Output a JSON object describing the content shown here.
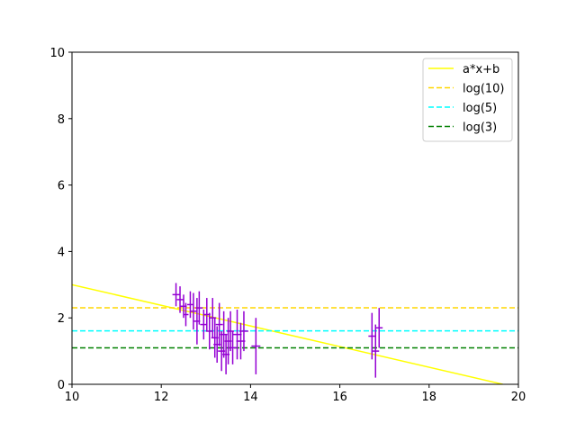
{
  "chart_data": {
    "type": "scatter",
    "xlim": [
      10,
      20
    ],
    "ylim": [
      0,
      10
    ],
    "xticks": [
      10,
      12,
      14,
      16,
      18,
      20
    ],
    "yticks": [
      0,
      2,
      4,
      6,
      8,
      10
    ],
    "grid": false,
    "legend_position": "top-right",
    "series": [
      {
        "name": "a*x+b",
        "kind": "line",
        "style": "solid",
        "color": "#ffff00",
        "x": [
          10,
          19.65
        ],
        "y": [
          3.0,
          0.0
        ]
      },
      {
        "name": "log(10)",
        "kind": "hline",
        "style": "dashed",
        "color": "#ffd700",
        "y": 2.303
      },
      {
        "name": "log(5)",
        "kind": "hline",
        "style": "dashed",
        "color": "#00ffff",
        "y": 1.609
      },
      {
        "name": "log(3)",
        "kind": "hline",
        "style": "dashed",
        "color": "#008000",
        "y": 1.099
      }
    ],
    "errorbar_series": {
      "color": "#9400d3",
      "points": [
        {
          "x": 12.33,
          "y": 2.7,
          "xerr": 0.08,
          "yerr": 0.35
        },
        {
          "x": 12.42,
          "y": 2.55,
          "xerr": 0.07,
          "yerr": 0.4
        },
        {
          "x": 12.5,
          "y": 2.35,
          "xerr": 0.07,
          "yerr": 0.35
        },
        {
          "x": 12.55,
          "y": 2.1,
          "xerr": 0.06,
          "yerr": 0.35
        },
        {
          "x": 12.65,
          "y": 2.4,
          "xerr": 0.07,
          "yerr": 0.4
        },
        {
          "x": 12.72,
          "y": 2.2,
          "xerr": 0.07,
          "yerr": 0.55
        },
        {
          "x": 12.8,
          "y": 1.9,
          "xerr": 0.07,
          "yerr": 0.7
        },
        {
          "x": 12.85,
          "y": 2.3,
          "xerr": 0.08,
          "yerr": 0.5
        },
        {
          "x": 12.95,
          "y": 1.8,
          "xerr": 0.08,
          "yerr": 0.45
        },
        {
          "x": 13.02,
          "y": 2.1,
          "xerr": 0.08,
          "yerr": 0.5
        },
        {
          "x": 13.08,
          "y": 1.6,
          "xerr": 0.08,
          "yerr": 0.55
        },
        {
          "x": 13.15,
          "y": 2.0,
          "xerr": 0.08,
          "yerr": 0.6
        },
        {
          "x": 13.2,
          "y": 1.4,
          "xerr": 0.08,
          "yerr": 0.6
        },
        {
          "x": 13.25,
          "y": 1.2,
          "xerr": 0.08,
          "yerr": 0.55
        },
        {
          "x": 13.3,
          "y": 1.8,
          "xerr": 0.08,
          "yerr": 0.65
        },
        {
          "x": 13.35,
          "y": 1.0,
          "xerr": 0.08,
          "yerr": 0.6
        },
        {
          "x": 13.4,
          "y": 1.5,
          "xerr": 0.08,
          "yerr": 0.7
        },
        {
          "x": 13.45,
          "y": 0.9,
          "xerr": 0.08,
          "yerr": 0.6
        },
        {
          "x": 13.5,
          "y": 1.3,
          "xerr": 0.08,
          "yerr": 0.7
        },
        {
          "x": 13.55,
          "y": 1.6,
          "xerr": 0.08,
          "yerr": 0.6
        },
        {
          "x": 13.6,
          "y": 1.1,
          "xerr": 0.08,
          "yerr": 0.5
        },
        {
          "x": 13.7,
          "y": 1.5,
          "xerr": 0.1,
          "yerr": 0.75
        },
        {
          "x": 13.78,
          "y": 1.3,
          "xerr": 0.1,
          "yerr": 0.55
        },
        {
          "x": 13.85,
          "y": 1.6,
          "xerr": 0.1,
          "yerr": 0.6
        },
        {
          "x": 14.12,
          "y": 1.15,
          "xerr": 0.1,
          "yerr": 0.85
        },
        {
          "x": 16.72,
          "y": 1.45,
          "xerr": 0.08,
          "yerr": 0.7
        },
        {
          "x": 16.8,
          "y": 1.0,
          "xerr": 0.08,
          "yerr": 0.8
        },
        {
          "x": 16.88,
          "y": 1.7,
          "xerr": 0.08,
          "yerr": 0.6
        }
      ]
    }
  }
}
